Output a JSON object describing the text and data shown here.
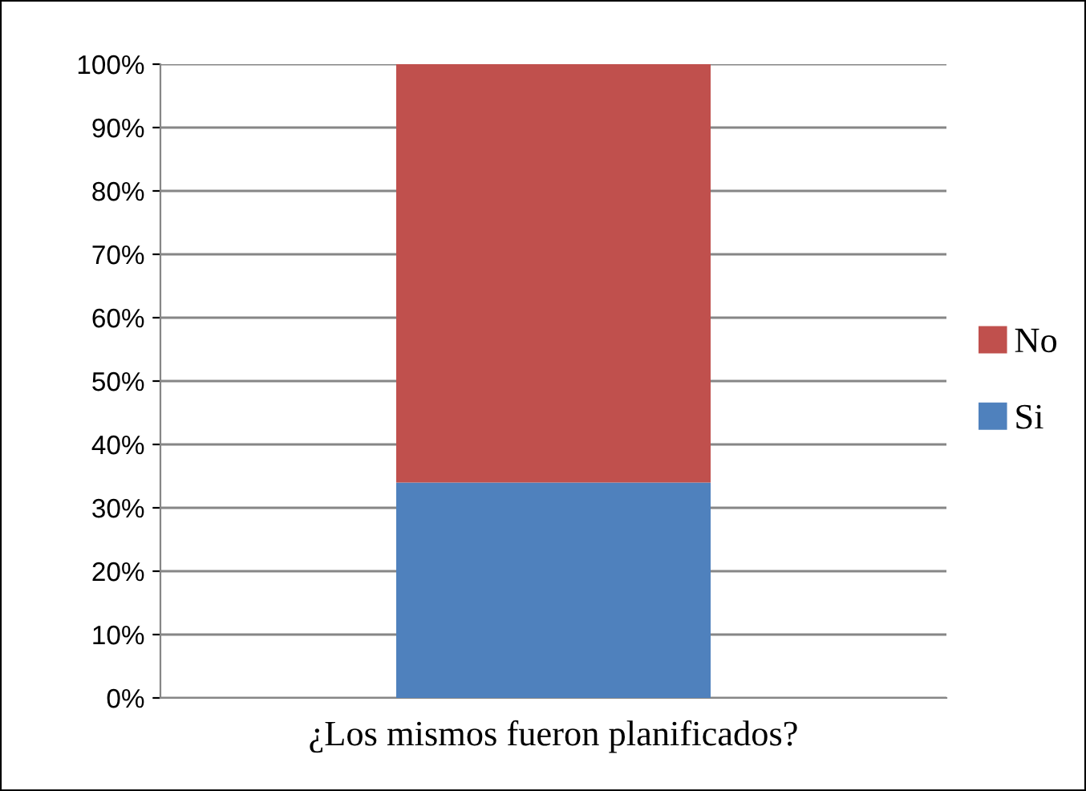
{
  "chart_data": {
    "type": "bar",
    "stacked": true,
    "categories": [
      "¿Los mismos fueron planificados?"
    ],
    "series": [
      {
        "name": "Si",
        "color": "#4f81bd",
        "values": [
          34
        ]
      },
      {
        "name": "No",
        "color": "#c0504d",
        "values": [
          66
        ]
      }
    ],
    "ylim": [
      0,
      100
    ],
    "yticks": [
      {
        "value": 0,
        "label": "0%"
      },
      {
        "value": 10,
        "label": "10%"
      },
      {
        "value": 20,
        "label": "20%"
      },
      {
        "value": 30,
        "label": "30%"
      },
      {
        "value": 40,
        "label": "40%"
      },
      {
        "value": 50,
        "label": "50%"
      },
      {
        "value": 60,
        "label": "60%"
      },
      {
        "value": 70,
        "label": "70%"
      },
      {
        "value": 80,
        "label": "80%"
      },
      {
        "value": 90,
        "label": "90%"
      },
      {
        "value": 100,
        "label": "100%"
      }
    ],
    "grid": "y",
    "legend": "right"
  }
}
